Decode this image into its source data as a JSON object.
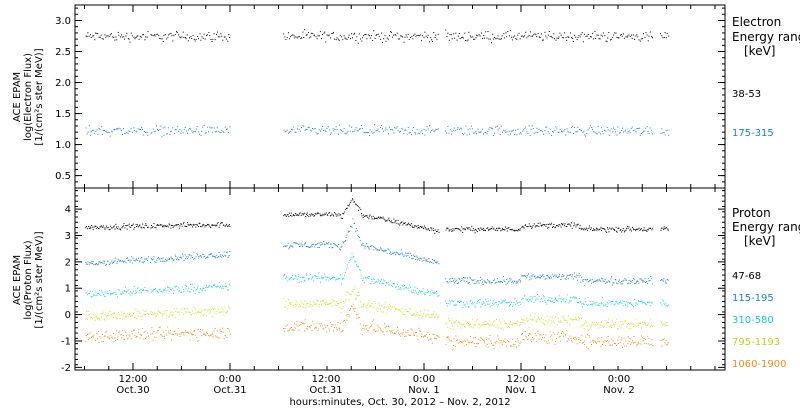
{
  "chart_data": [
    {
      "type": "scatter",
      "panel": "electron",
      "ylabel": [
        "ACE EPAM",
        "log(Electron Flux)",
        "[1/(cm²s ster MeV)]"
      ],
      "ylim": [
        0.3,
        3.25
      ],
      "yticks": [
        "0.5",
        "1.0",
        "1.5",
        "2.0",
        "2.5",
        "3.0"
      ],
      "yticks_values": [
        0.5,
        1.0,
        1.5,
        2.0,
        2.5,
        3.0
      ],
      "legend_title": [
        "Electron",
        "Energy range"
      ],
      "legend_unit": "[keV]",
      "legend_placement": "right",
      "series": [
        {
          "name": "38-53",
          "color": "#000000",
          "approx_level": 2.75,
          "spread": 0.05
        },
        {
          "name": "175-315",
          "color": "#1c7fd6",
          "approx_level": 1.23,
          "spread": 0.05
        }
      ]
    },
    {
      "type": "scatter",
      "panel": "proton",
      "ylabel": [
        "ACE EPAM",
        "log(Proton Flux)",
        "[1/(cm²s ster MeV)]"
      ],
      "ylim": [
        -2.1,
        4.8
      ],
      "yticks": [
        "-2",
        "-1",
        "0",
        "1",
        "2",
        "3",
        "4"
      ],
      "yticks_values": [
        -2,
        -1,
        0,
        1,
        2,
        3,
        4
      ],
      "legend_title": [
        "Proton",
        "Energy range"
      ],
      "legend_unit": "[keV]",
      "legend_placement": "right",
      "series": [
        {
          "name": "47-68",
          "color": "#000000",
          "approx_level": 3.4,
          "spread": 0.06
        },
        {
          "name": "115-195",
          "color": "#1c7fd6",
          "approx_level": 2.2,
          "spread": 0.08
        },
        {
          "name": "310-580",
          "color": "#19d6d6",
          "approx_level": 1.0,
          "spread": 0.1
        },
        {
          "name": "795-1193",
          "color": "#c8e619",
          "approx_level": 0.1,
          "spread": 0.12
        },
        {
          "name": "1060-1900",
          "color": "#f08c19",
          "approx_level": -0.7,
          "spread": 0.15
        }
      ]
    }
  ],
  "xaxis": {
    "ticks": [
      {
        "label1": "12:00",
        "label2": "Oct.30"
      },
      {
        "label1": "0:00",
        "label2": "Oct.31"
      },
      {
        "label1": "12:00",
        "label2": "Oct.31"
      },
      {
        "label1": "0:00",
        "label2": "Nov. 1"
      },
      {
        "label1": "12:00",
        "label2": "Nov. 1"
      },
      {
        "label1": "0:00",
        "label2": "Nov. 2"
      }
    ],
    "caption": "hours:minutes, Oct. 30, 2012 – Nov. 2, 2012"
  }
}
